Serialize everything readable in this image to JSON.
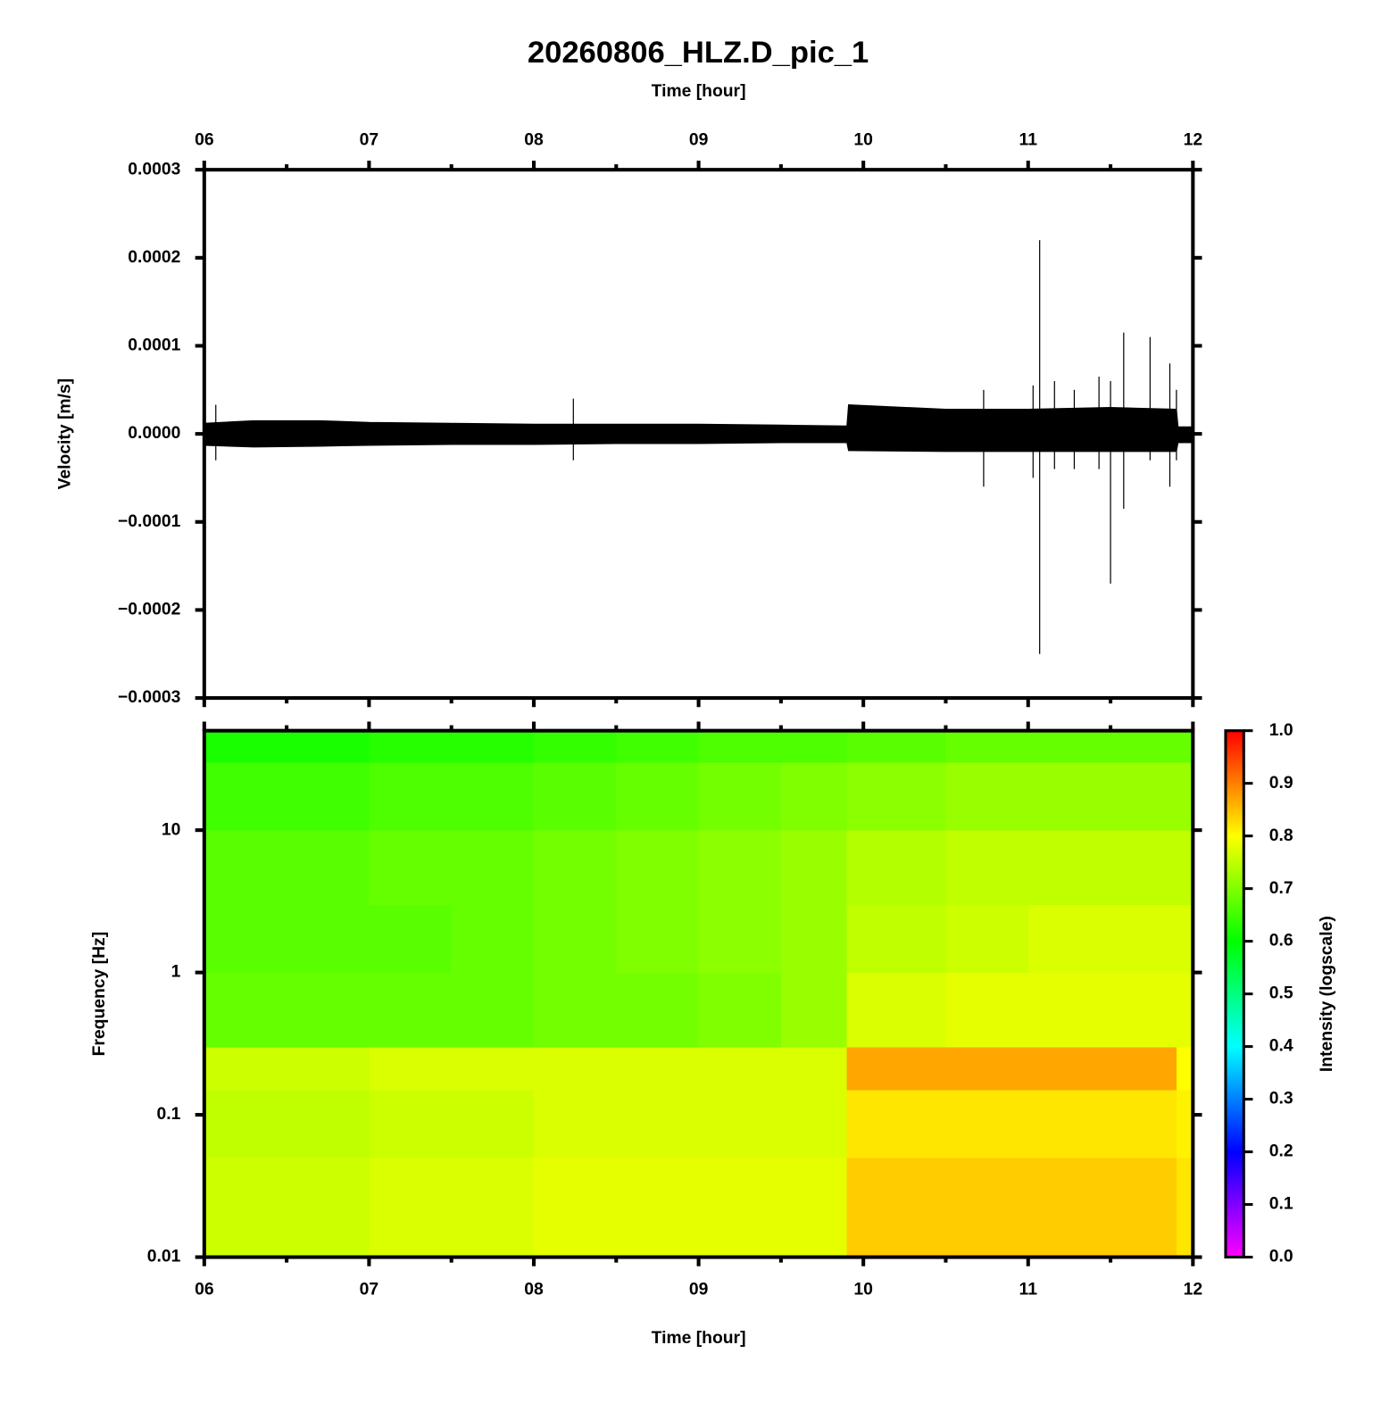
{
  "chart_data": [
    {
      "type": "band",
      "title": "20260806_HLZ.D_pic_1",
      "xlabel": "Time [hour]",
      "ylabel": "Velocity [m/s]",
      "xaxis_position": "top",
      "color": "#000000",
      "xlim": [
        6,
        12
      ],
      "xticks": [
        {
          "value": 6,
          "label": "06"
        },
        {
          "value": 7,
          "label": "07"
        },
        {
          "value": 8,
          "label": "08"
        },
        {
          "value": 9,
          "label": "09"
        },
        {
          "value": 10,
          "label": "10"
        },
        {
          "value": 11,
          "label": "11"
        },
        {
          "value": 12,
          "label": "12"
        }
      ],
      "xminorticks": [
        6.5,
        7.5,
        8.5,
        9.5,
        10.5,
        11.5
      ],
      "ylim": [
        -0.0003,
        0.0003
      ],
      "yticks": [
        {
          "value": -0.0003,
          "label": "−0.0003"
        },
        {
          "value": -0.0002,
          "label": "−0.0002"
        },
        {
          "value": -0.0001,
          "label": "−0.0001"
        },
        {
          "value": 0,
          "label": "0.0000"
        },
        0.0001,
        0.0002,
        0.0003
      ],
      "x": [
        6.0,
        6.3,
        6.7,
        7.0,
        7.5,
        8.0,
        8.5,
        9.0,
        9.5,
        9.9,
        9.91,
        10.5,
        11.0,
        11.5,
        11.9,
        11.91,
        12.0
      ],
      "upper": [
        1.2e-05,
        1.5e-05,
        1.5e-05,
        1.3e-05,
        1.2e-05,
        1.1e-05,
        1.1e-05,
        1.1e-05,
        1e-05,
        9e-06,
        3.3e-05,
        2.8e-05,
        2.8e-05,
        3e-05,
        2.8e-05,
        8e-06,
        8e-06
      ],
      "lower": [
        -1.3e-05,
        -1.5e-05,
        -1.4e-05,
        -1.3e-05,
        -1.2e-05,
        -1.2e-05,
        -1.1e-05,
        -1.1e-05,
        -1e-05,
        -1e-05,
        -1.9e-05,
        -2e-05,
        -2e-05,
        -2e-05,
        -2e-05,
        -1e-05,
        -1e-05
      ],
      "spikes": {
        "x": [
          6.07,
          8.24,
          10.73,
          11.03,
          11.07,
          11.16,
          11.28,
          11.43,
          11.5,
          11.58,
          11.74,
          11.86,
          11.9
        ],
        "upper": [
          3.3e-05,
          4e-05,
          5e-05,
          5.5e-05,
          0.00022,
          6e-05,
          5e-05,
          6.5e-05,
          6e-05,
          0.000115,
          0.00011,
          8e-05,
          5e-05
        ],
        "lower": [
          -3e-05,
          -3e-05,
          -6e-05,
          -5e-05,
          -0.00025,
          -4e-05,
          -4e-05,
          -4e-05,
          -0.00017,
          -8.5e-05,
          -3e-05,
          -6e-05,
          -3e-05
        ]
      }
    },
    {
      "type": "heatmap",
      "xlabel": "Time [hour]",
      "ylabel": "Frequency [Hz]",
      "xaxis_position": "bottom",
      "log_scale": true,
      "xlim": [
        6,
        12
      ],
      "xticks": [
        {
          "value": 6,
          "label": "06"
        },
        {
          "value": 7,
          "label": "07"
        },
        {
          "value": 8,
          "label": "08"
        },
        {
          "value": 9,
          "label": "09"
        },
        {
          "value": 10,
          "label": "10"
        },
        {
          "value": 11,
          "label": "11"
        },
        {
          "value": 12,
          "label": "12"
        }
      ],
      "xminorticks": [
        6.5,
        7.5,
        8.5,
        9.5,
        10.5,
        11.5
      ],
      "ylim": [
        0.01,
        50
      ],
      "yticks": [
        0.01,
        0.1,
        1,
        10
      ],
      "x_edges": [
        6,
        6.5,
        7,
        7.5,
        8,
        8.5,
        9,
        9.5,
        9.9,
        10.5,
        11,
        11.5,
        11.9,
        12
      ],
      "y_edges": [
        0.01,
        0.05,
        0.15,
        0.3,
        1,
        3,
        10,
        30,
        50
      ],
      "values": [
        [
          0.76,
          0.76,
          0.77,
          0.77,
          0.78,
          0.78,
          0.78,
          0.78,
          0.84,
          0.84,
          0.84,
          0.84,
          0.82
        ],
        [
          0.75,
          0.75,
          0.76,
          0.76,
          0.77,
          0.77,
          0.77,
          0.77,
          0.82,
          0.82,
          0.82,
          0.82,
          0.81
        ],
        [
          0.76,
          0.76,
          0.77,
          0.77,
          0.77,
          0.77,
          0.77,
          0.77,
          0.87,
          0.87,
          0.87,
          0.87,
          0.8
        ],
        [
          0.68,
          0.68,
          0.68,
          0.68,
          0.69,
          0.69,
          0.7,
          0.72,
          0.77,
          0.78,
          0.78,
          0.78,
          0.78
        ],
        [
          0.67,
          0.67,
          0.67,
          0.68,
          0.69,
          0.7,
          0.71,
          0.72,
          0.75,
          0.76,
          0.77,
          0.77,
          0.77
        ],
        [
          0.67,
          0.67,
          0.68,
          0.68,
          0.69,
          0.7,
          0.71,
          0.72,
          0.74,
          0.75,
          0.75,
          0.75,
          0.75
        ],
        [
          0.65,
          0.65,
          0.66,
          0.66,
          0.67,
          0.68,
          0.69,
          0.7,
          0.71,
          0.72,
          0.72,
          0.72,
          0.72
        ],
        [
          0.62,
          0.62,
          0.63,
          0.63,
          0.64,
          0.65,
          0.66,
          0.66,
          0.67,
          0.68,
          0.68,
          0.68,
          0.68
        ]
      ],
      "colorbar_label": "Intensity (logscale)",
      "clim": [
        0,
        1
      ],
      "colormap": [
        "#ff00ff",
        "#0000ff",
        "#00ffff",
        "#00ff00",
        "#ffff00",
        "#ff0000"
      ],
      "cticks": [
        {
          "value": 0,
          "label": "0.0"
        },
        0.1,
        0.2,
        0.3,
        0.4,
        0.5,
        0.6,
        0.7,
        0.8,
        0.9,
        {
          "value": 1,
          "label": "1.0"
        }
      ]
    }
  ]
}
